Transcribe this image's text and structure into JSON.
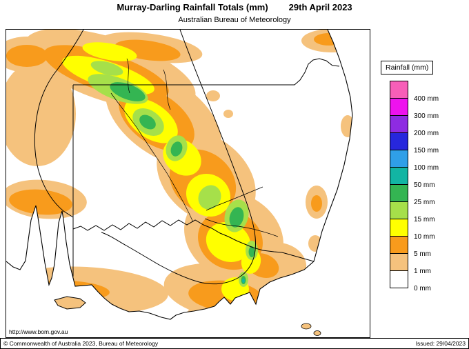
{
  "header": {
    "title": "Murray-Darling Rainfall Totals (mm)",
    "date": "29th April 2023",
    "subtitle": "Australian Bureau of Meteorology"
  },
  "map": {
    "url_label": "http://www.bom.gov.au"
  },
  "palette": {
    "tan": "#f5c27d",
    "orange": "#f89b1c",
    "yellow": "#ffff00",
    "light_green": "#a6e04a",
    "green": "#34b552",
    "teal": "#12b5a3",
    "white": "#ffffff"
  },
  "legend": {
    "title": "Rainfall (mm)",
    "items": [
      {
        "label": "400 mm",
        "color": "#f75fb8"
      },
      {
        "label": "300 mm",
        "color": "#ee12ee"
      },
      {
        "label": "200 mm",
        "color": "#8e2be2"
      },
      {
        "label": "150 mm",
        "color": "#2727dd"
      },
      {
        "label": "100 mm",
        "color": "#2f9fe8"
      },
      {
        "label": "50 mm",
        "color": "#12b5a3"
      },
      {
        "label": "25 mm",
        "color": "#34b552"
      },
      {
        "label": "15 mm",
        "color": "#a6e04a"
      },
      {
        "label": "10 mm",
        "color": "#ffff00"
      },
      {
        "label": "5 mm",
        "color": "#f89b1c"
      },
      {
        "label": "1 mm",
        "color": "#f5c27d"
      },
      {
        "label": "0 mm",
        "color": "#ffffff"
      }
    ]
  },
  "footer": {
    "copyright": "© Commonwealth of Australia 2023, Bureau of Meteorology",
    "issued": "Issued: 29/04/2023"
  }
}
